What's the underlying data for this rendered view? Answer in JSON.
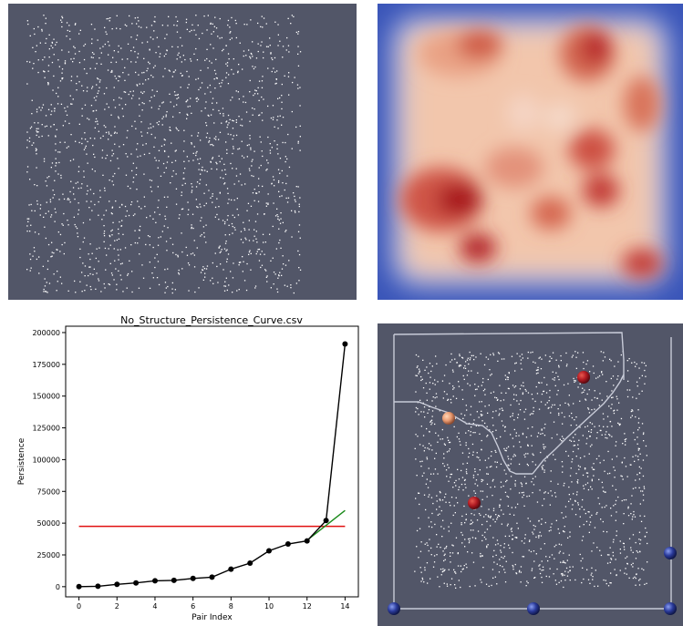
{
  "panels": {
    "top_left": {
      "view": "point-cloud",
      "background": "#525668",
      "point_color": "#ffffff"
    },
    "top_right": {
      "view": "density-field",
      "colormap": [
        "#3b4cc0",
        "#f2c9b4",
        "#b40426"
      ]
    },
    "bottom_right": {
      "view": "critical-points",
      "background": "#525668",
      "sphere_colors": {
        "max_dark": "#b01a22",
        "max_light": "#e89a70",
        "min": "#2a3a9a"
      }
    }
  },
  "chart_data": {
    "type": "line",
    "title": "No_Structure_Persistence_Curve.csv",
    "xlabel": "Pair Index",
    "ylabel": "Persistence",
    "xlim": [
      -0.7,
      14.7
    ],
    "ylim": [
      -8000,
      205000
    ],
    "xticks": [
      0,
      2,
      4,
      6,
      8,
      10,
      12,
      14
    ],
    "yticks": [
      0,
      25000,
      50000,
      75000,
      100000,
      125000,
      150000,
      175000,
      200000
    ],
    "grid": false,
    "series": [
      {
        "color": "#000000",
        "x": [
          0,
          1,
          2,
          3,
          4,
          5,
          6,
          7,
          8,
          9,
          10,
          11,
          12,
          13,
          14
        ],
        "y": [
          0,
          300,
          1800,
          3000,
          4600,
          5000,
          6500,
          7500,
          13800,
          18500,
          28200,
          33600,
          36000,
          52000,
          191000
        ]
      }
    ],
    "reference_lines": [
      {
        "kind": "horizontal",
        "color": "#e01010",
        "y": 47500,
        "x_from": 0,
        "x_to": 14
      },
      {
        "kind": "fit",
        "color": "#1a8a1a",
        "x": [
          12,
          14
        ],
        "y": [
          36500,
          60000
        ]
      }
    ]
  }
}
